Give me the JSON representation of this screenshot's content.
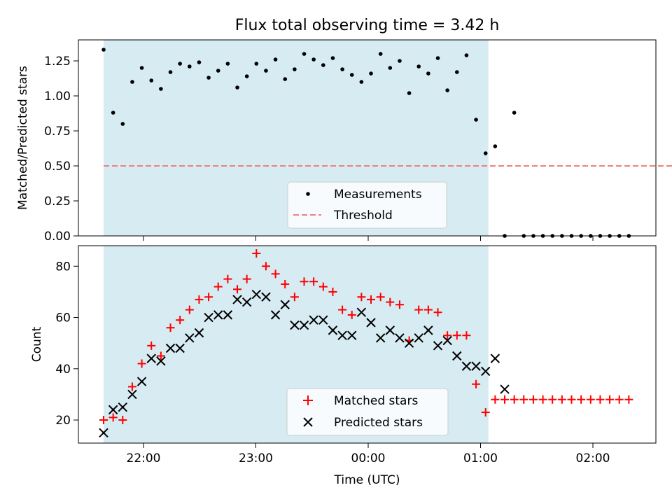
{
  "chart_data": [
    {
      "type": "scatter",
      "title": "Flux total observing time = 3.42 h",
      "xlabel": "",
      "ylabel": "Matched/Predicted stars",
      "ylim": [
        0,
        1.4
      ],
      "yticks": [
        "0.00",
        "0.25",
        "0.50",
        "0.75",
        "1.00",
        "1.25"
      ],
      "xticks": [
        "22:00",
        "23:00",
        "00:00",
        "01:00",
        "02:00"
      ],
      "shaded_span": {
        "x_start": -0.355,
        "x_end": 3.07,
        "color": "#add8e6"
      },
      "threshold": {
        "value": 0.5,
        "x_start": -0.355,
        "x_end": 4.9,
        "color": "#f08080"
      },
      "legend": {
        "position": "bottom-center",
        "entries": [
          "Measurements",
          "Threshold"
        ]
      },
      "series": [
        {
          "name": "Measurements",
          "marker": "dot",
          "color": "#000000",
          "x": [
            -0.355,
            -0.27,
            -0.185,
            -0.1,
            -0.015,
            0.07,
            0.155,
            0.24,
            0.325,
            0.41,
            0.495,
            0.58,
            0.665,
            0.75,
            0.835,
            0.92,
            1.005,
            1.09,
            1.175,
            1.26,
            1.345,
            1.43,
            1.515,
            1.6,
            1.685,
            1.77,
            1.855,
            1.94,
            2.025,
            2.11,
            2.195,
            2.28,
            2.365,
            2.45,
            2.535,
            2.62,
            2.705,
            2.79,
            2.875,
            2.96,
            3.045,
            3.13,
            3.215,
            3.3,
            3.385,
            3.47,
            3.555,
            3.64,
            3.725,
            3.81,
            3.895,
            3.98,
            4.065,
            4.15,
            4.235,
            4.32
          ],
          "y": [
            1.33,
            0.88,
            0.8,
            1.1,
            1.2,
            1.11,
            1.05,
            1.17,
            1.23,
            1.21,
            1.24,
            1.13,
            1.18,
            1.23,
            1.06,
            1.14,
            1.23,
            1.18,
            1.26,
            1.12,
            1.19,
            1.3,
            1.26,
            1.22,
            1.27,
            1.19,
            1.15,
            1.1,
            1.16,
            1.3,
            1.2,
            1.25,
            1.02,
            1.21,
            1.16,
            1.27,
            1.04,
            1.17,
            1.29,
            0.83,
            0.59,
            0.64,
            0.0,
            0.88,
            0.0,
            0.0,
            0.0,
            0.0,
            0.0,
            0.0,
            0.0,
            0.0,
            0.0,
            0.0,
            0.0,
            0.0
          ]
        }
      ]
    },
    {
      "type": "scatter",
      "title": "",
      "xlabel": "Time (UTC)",
      "ylabel": "Count",
      "ylim": [
        11,
        88
      ],
      "yticks": [
        "20",
        "40",
        "60",
        "80"
      ],
      "xticks": [
        "22:00",
        "23:00",
        "00:00",
        "01:00",
        "02:00"
      ],
      "shaded_span": {
        "x_start": -0.355,
        "x_end": 3.07,
        "color": "#add8e6"
      },
      "legend": {
        "position": "bottom-center",
        "entries": [
          "Matched stars",
          "Predicted stars"
        ]
      },
      "series": [
        {
          "name": "Matched stars",
          "marker": "plus",
          "color": "#ff0000",
          "x": [
            -0.355,
            -0.27,
            -0.185,
            -0.1,
            -0.015,
            0.07,
            0.155,
            0.24,
            0.325,
            0.41,
            0.495,
            0.58,
            0.665,
            0.75,
            0.835,
            0.92,
            1.005,
            1.09,
            1.175,
            1.26,
            1.345,
            1.43,
            1.515,
            1.6,
            1.685,
            1.77,
            1.855,
            1.94,
            2.025,
            2.11,
            2.195,
            2.28,
            2.365,
            2.45,
            2.535,
            2.62,
            2.705,
            2.79,
            2.875,
            2.96,
            3.045,
            3.13,
            3.215,
            3.3,
            3.385,
            3.47,
            3.555,
            3.64,
            3.725,
            3.81,
            3.895,
            3.98,
            4.065,
            4.15,
            4.235,
            4.32
          ],
          "y": [
            20,
            21,
            20,
            33,
            42,
            49,
            45,
            56,
            59,
            63,
            67,
            68,
            72,
            75,
            71,
            75,
            85,
            80,
            77,
            73,
            68,
            74,
            74,
            72,
            70,
            63,
            61,
            68,
            67,
            68,
            66,
            65,
            51,
            63,
            63,
            62,
            53,
            53,
            53,
            34,
            23,
            28,
            28,
            28,
            28,
            28,
            28,
            28,
            28,
            28,
            28,
            28,
            28,
            28,
            28,
            28
          ]
        },
        {
          "name": "Predicted stars",
          "marker": "x",
          "color": "#000000",
          "x": [
            -0.355,
            -0.27,
            -0.185,
            -0.1,
            -0.015,
            0.07,
            0.155,
            0.24,
            0.325,
            0.41,
            0.495,
            0.58,
            0.665,
            0.75,
            0.835,
            0.92,
            1.005,
            1.09,
            1.175,
            1.26,
            1.345,
            1.43,
            1.515,
            1.6,
            1.685,
            1.77,
            1.855,
            1.94,
            2.025,
            2.11,
            2.195,
            2.28,
            2.365,
            2.45,
            2.535,
            2.62,
            2.705,
            2.79,
            2.875,
            2.96,
            3.045,
            3.13,
            3.215
          ],
          "y": [
            15,
            24,
            25,
            30,
            35,
            44,
            43,
            48,
            48,
            52,
            54,
            60,
            61,
            61,
            67,
            66,
            69,
            68,
            61,
            65,
            57,
            57,
            59,
            59,
            55,
            53,
            53,
            62,
            58,
            52,
            55,
            52,
            50,
            52,
            55,
            49,
            51,
            45,
            41,
            41,
            39,
            44,
            32
          ]
        }
      ]
    }
  ]
}
